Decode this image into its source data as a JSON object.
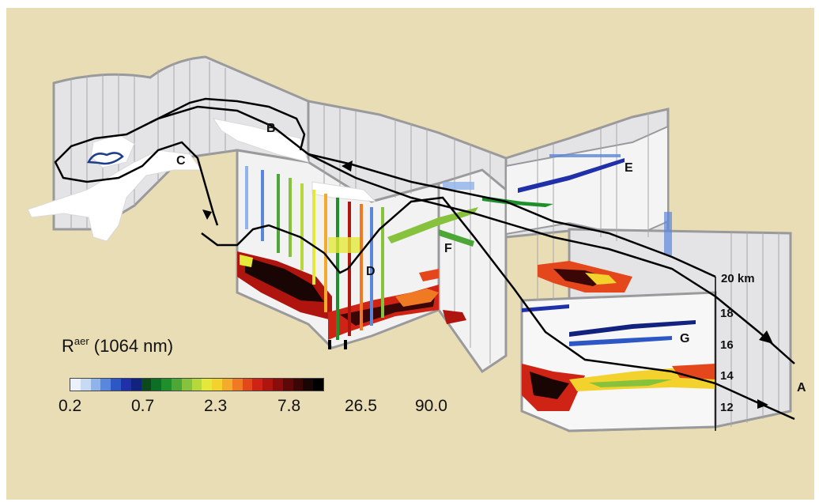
{
  "legend": {
    "title_main": "R",
    "title_sup": "aer",
    "title_suffix": " (1064 nm)",
    "ticks": [
      "0.2",
      "0.7",
      "2.3",
      "7.8",
      "26.5",
      "90.0"
    ],
    "colors": [
      "#eaf1fb",
      "#c6daf4",
      "#8fb3ea",
      "#5a86dc",
      "#2d57c4",
      "#2030a8",
      "#12237f",
      "#0c4a1c",
      "#0d6e26",
      "#1f8f2c",
      "#4ca736",
      "#86c23b",
      "#b7d83a",
      "#e4e83a",
      "#f4d22d",
      "#f4aa2a",
      "#f07a24",
      "#e4471b",
      "#cf2415",
      "#b0140f",
      "#8a0c0b",
      "#5f0808",
      "#3a0606",
      "#1a0505",
      "#000000"
    ]
  },
  "labels": {
    "A": "A",
    "B": "B",
    "C": "C",
    "D": "D",
    "E": "E",
    "F": "F",
    "G": "G"
  },
  "altitude": {
    "top": "20 km",
    "ticks": [
      "18",
      "16",
      "14",
      "12"
    ]
  },
  "colors": {
    "background": "#e8ddb5",
    "curtain": "#e4e4e6",
    "curtain_line": "#9a9a9c",
    "trajectory": "#000000"
  }
}
